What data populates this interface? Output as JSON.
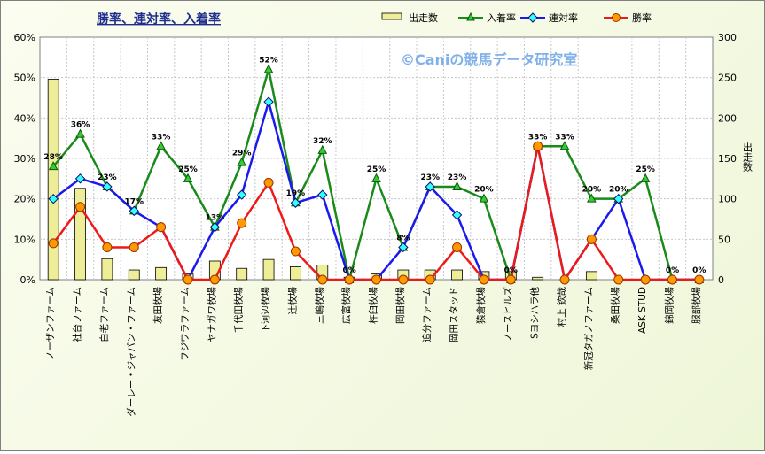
{
  "chart_data": {
    "type": "line",
    "title": "勝率、連対率、入着率",
    "watermark": "©Caniの競馬データ研究室",
    "ylabel_right": "出走数",
    "ylim_left": [
      0,
      60
    ],
    "ylim_right": [
      0,
      300
    ],
    "yticks_left": [
      "0%",
      "10%",
      "20%",
      "30%",
      "40%",
      "50%",
      "60%"
    ],
    "yticks_right": [
      "0",
      "50",
      "100",
      "150",
      "200",
      "250",
      "300"
    ],
    "legend_position": "top",
    "grid": true,
    "categories": [
      "ノーザンファーム",
      "社台ファーム",
      "白老ファーム",
      "ダーレー・ジャパン・ファーム",
      "友田牧場",
      "フジワラファーム",
      "ヤナガワ牧場",
      "千代田牧場",
      "下河辺牧場",
      "辻牧場",
      "三嶋牧場",
      "広富牧場",
      "杵臼牧場",
      "岡田牧場",
      "追分ファーム",
      "岡田スタッド",
      "猿倉牧場",
      "ノースヒルズ",
      "Sヨシハラ他",
      "村上 欽哉",
      "新冠タガノファーム",
      "桑田牧場",
      "ASK STUD",
      "錦岡牧場",
      "服部牧場"
    ],
    "series": [
      {
        "name": "出走数",
        "kind": "bar",
        "axis": "right",
        "color": "#eeee99",
        "values": [
          248,
          113,
          26,
          12,
          15,
          7,
          23,
          14,
          25,
          16,
          18,
          3,
          7,
          12,
          12,
          12,
          10,
          10,
          3,
          0,
          10,
          0,
          0,
          0,
          0
        ]
      },
      {
        "name": "入着率",
        "kind": "line",
        "axis": "left",
        "color": "#1a8a1a",
        "marker": "triangle",
        "values": [
          28,
          36,
          23,
          17,
          33,
          25,
          13,
          29,
          52,
          19,
          32,
          0,
          25,
          8,
          23,
          23,
          20,
          0,
          33,
          33,
          20,
          20,
          25,
          0,
          0
        ],
        "labels": [
          "28%",
          "36%",
          "23%",
          "17%",
          "33%",
          "25%",
          "13%",
          "29%",
          "52%",
          "19%",
          "32%",
          "0%",
          "25%",
          "8%",
          "23%",
          "23%",
          "20%",
          "0%",
          "33%",
          "33%",
          "20%",
          "20%",
          "25%",
          "0%",
          "0%"
        ]
      },
      {
        "name": "連対率",
        "kind": "line",
        "axis": "left",
        "color": "#1a1aee",
        "marker": "diamond",
        "values": [
          20,
          25,
          23,
          17,
          13,
          0,
          13,
          21,
          44,
          19,
          21,
          0,
          0,
          8,
          23,
          16,
          0,
          0,
          33,
          0,
          10,
          20,
          0,
          0,
          0
        ]
      },
      {
        "name": "勝率",
        "kind": "line",
        "axis": "left",
        "color": "#ee1a1a",
        "marker": "circle",
        "values": [
          9,
          18,
          8,
          8,
          13,
          0,
          0,
          14,
          24,
          7,
          0,
          0,
          0,
          0,
          0,
          8,
          0,
          0,
          33,
          0,
          10,
          0,
          0,
          0,
          0
        ]
      }
    ]
  }
}
